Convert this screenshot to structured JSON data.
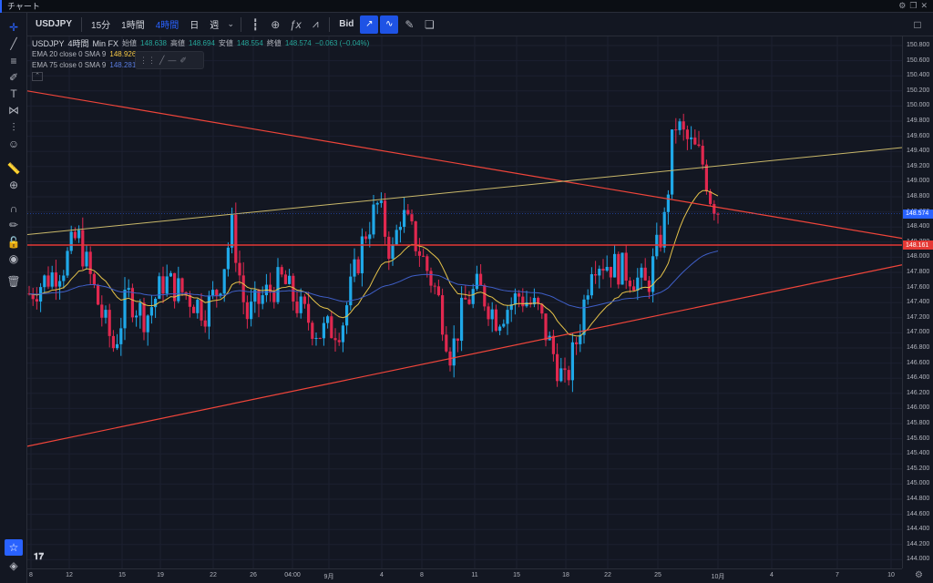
{
  "app": {
    "title": "チャート"
  },
  "toolbar": {
    "symbol": "USDJPY",
    "intervals": [
      "15分",
      "1時間",
      "4時間",
      "日",
      "週"
    ],
    "active_interval": "4時間",
    "bid_label": "Bid"
  },
  "legend": {
    "symbol": "USDJPY",
    "interval": "4時間",
    "broker": "Min FX",
    "open_label": "始値",
    "open": "148.638",
    "high_label": "高値",
    "high": "148.694",
    "low_label": "安値",
    "low": "148.554",
    "close_label": "終値",
    "close": "148.574",
    "change": "−0.063 (−0.04%)",
    "ema20_label": "EMA 20 close 0 SMA 9",
    "ema20_value": "148.926",
    "ema75_label": "EMA 75 close 0 SMA 9",
    "ema75_value": "148.281"
  },
  "price_axis": {
    "labels": [
      "150.800",
      "150.600",
      "150.400",
      "150.200",
      "150.000",
      "149.800",
      "149.600",
      "149.400",
      "149.200",
      "149.000",
      "148.800",
      "148.600",
      "148.400",
      "148.200",
      "148.000",
      "147.800",
      "147.600",
      "147.400",
      "147.200",
      "147.000",
      "146.800",
      "146.600",
      "146.400",
      "146.200",
      "146.000",
      "145.800",
      "145.600",
      "145.400",
      "145.200",
      "145.000",
      "144.800",
      "144.600",
      "144.400",
      "144.200",
      "144.000"
    ],
    "current_price": "148.574",
    "hline_price": "148.161"
  },
  "time_axis": {
    "labels": [
      "8",
      "12",
      "15",
      "19",
      "22",
      "26",
      "04:00",
      "9月",
      "4",
      "8",
      "11",
      "15",
      "18",
      "22",
      "25",
      "10月",
      "4",
      "7",
      "10"
    ]
  },
  "colors": {
    "up": "#26a69a",
    "bull_candle": "#1fa8e8",
    "bear_candle": "#e0284f",
    "trendline": "#f0453a",
    "channel_top": "#c9b86a",
    "ema20": "#e6c34a",
    "ema75": "#3f5fc8",
    "accent": "#2962ff"
  },
  "icons": {
    "left_tools": [
      "crosshair-icon",
      "trendline-icon",
      "fib-icon",
      "brush-icon",
      "text-icon",
      "pattern-icon",
      "measure-icon",
      "emoji-icon",
      "ruler-icon",
      "zoom-icon",
      "magnet-icon",
      "lock-draw-icon",
      "lock-icon",
      "eye-icon",
      "trash-icon",
      "star-icon",
      "layers-icon"
    ]
  }
}
